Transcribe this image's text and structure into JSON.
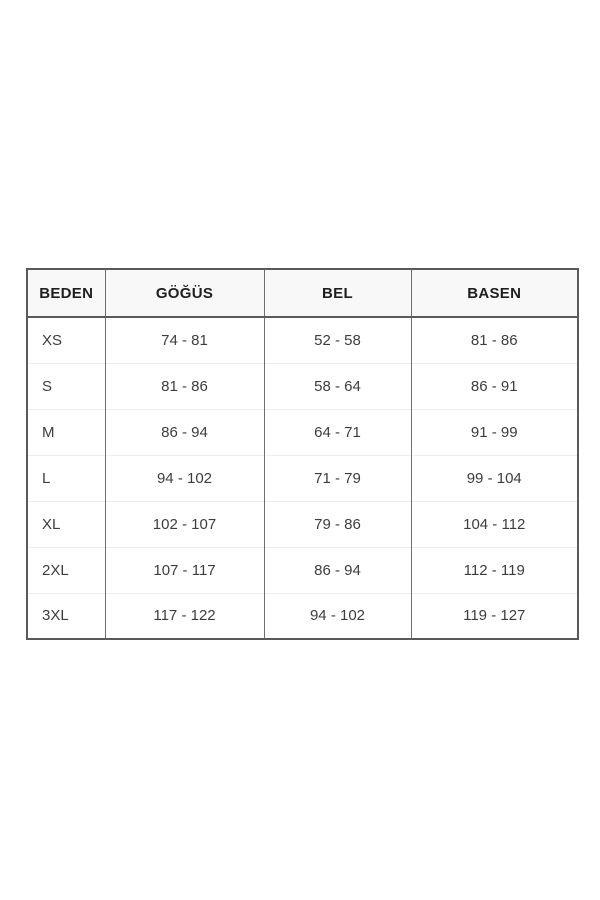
{
  "table": {
    "headers": {
      "size": "BEDEN",
      "chest": "GÖĞÜS",
      "waist": "BEL",
      "hips": "BASEN"
    },
    "rows": [
      {
        "size": "XS",
        "chest": "74 - 81",
        "waist": "52 - 58",
        "hips": "81 - 86"
      },
      {
        "size": "S",
        "chest": "81 - 86",
        "waist": "58 - 64",
        "hips": "86 - 91"
      },
      {
        "size": "M",
        "chest": "86 - 94",
        "waist": "64 - 71",
        "hips": "91 - 99"
      },
      {
        "size": "L",
        "chest": "94 - 102",
        "waist": "71 - 79",
        "hips": "99 - 104"
      },
      {
        "size": "XL",
        "chest": "102 - 107",
        "waist": "79 - 86",
        "hips": "104 - 112"
      },
      {
        "size": "2XL",
        "chest": "107 - 117",
        "waist": "86 - 94",
        "hips": "112 - 119"
      },
      {
        "size": "3XL",
        "chest": "117 - 122",
        "waist": "94 - 102",
        "hips": "119 - 127"
      }
    ]
  },
  "colors": {
    "page_background": "#ffffff",
    "outer_border": "#5a5a5c",
    "column_separator": "#6f6f71",
    "row_separator": "#ededed",
    "header_background": "#f8f8f8",
    "header_text": "#1f1f21",
    "body_text": "#3d3d3f"
  },
  "chart_data": {
    "type": "table",
    "title": "",
    "columns": [
      "BEDEN",
      "GÖĞÜS",
      "BEL",
      "BASEN"
    ],
    "rows": [
      [
        "XS",
        "74 - 81",
        "52 - 58",
        "81 - 86"
      ],
      [
        "S",
        "81 - 86",
        "58 - 64",
        "86 - 91"
      ],
      [
        "M",
        "86 - 94",
        "64 - 71",
        "91 - 99"
      ],
      [
        "L",
        "94 - 102",
        "71 - 79",
        "99 - 104"
      ],
      [
        "XL",
        "102 - 107",
        "79 - 86",
        "104 - 112"
      ],
      [
        "2XL",
        "107 - 117",
        "86 - 94",
        "112 - 119"
      ],
      [
        "3XL",
        "117 - 122",
        "94 - 102",
        "119 - 127"
      ]
    ]
  }
}
